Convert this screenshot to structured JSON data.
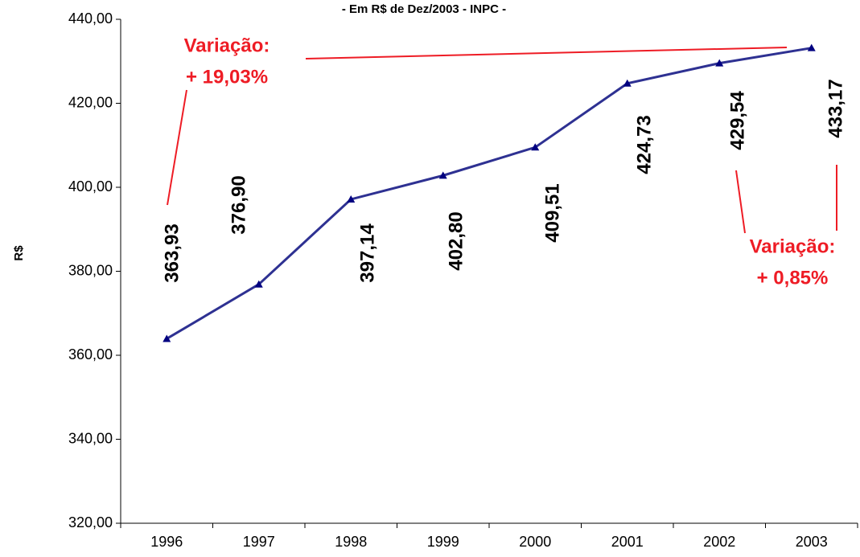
{
  "chart_data": {
    "type": "line",
    "subtitle": "- Em R$ de Dez/2003 - INPC -",
    "y_label": "R$",
    "categories": [
      "1996",
      "1997",
      "1998",
      "1999",
      "2000",
      "2001",
      "2002",
      "2003"
    ],
    "series": [
      {
        "name": "R$",
        "color": "#2e3192",
        "values": [
          363.93,
          376.9,
          397.14,
          402.8,
          409.51,
          424.73,
          429.54,
          433.17
        ],
        "value_labels": [
          "363,93",
          "376,90",
          "397,14",
          "402,80",
          "409,51",
          "424,73",
          "429,54",
          "433,17"
        ]
      }
    ],
    "ylim": [
      320,
      440
    ],
    "yticks": [
      {
        "value": 320,
        "label": "320,00"
      },
      {
        "value": 340,
        "label": "340,00"
      },
      {
        "value": 360,
        "label": "360,00"
      },
      {
        "value": 380,
        "label": "380,00"
      },
      {
        "value": 400,
        "label": "400,00"
      },
      {
        "value": 420,
        "label": "420,00"
      },
      {
        "value": 440,
        "label": "440,00"
      }
    ],
    "grid": false,
    "annotations": [
      {
        "lines": [
          "Variação:",
          "+ 19,03%"
        ],
        "color": "#ee1c25"
      },
      {
        "lines": [
          "Variação:",
          "+ 0,85%"
        ],
        "color": "#ee1c25"
      }
    ]
  }
}
